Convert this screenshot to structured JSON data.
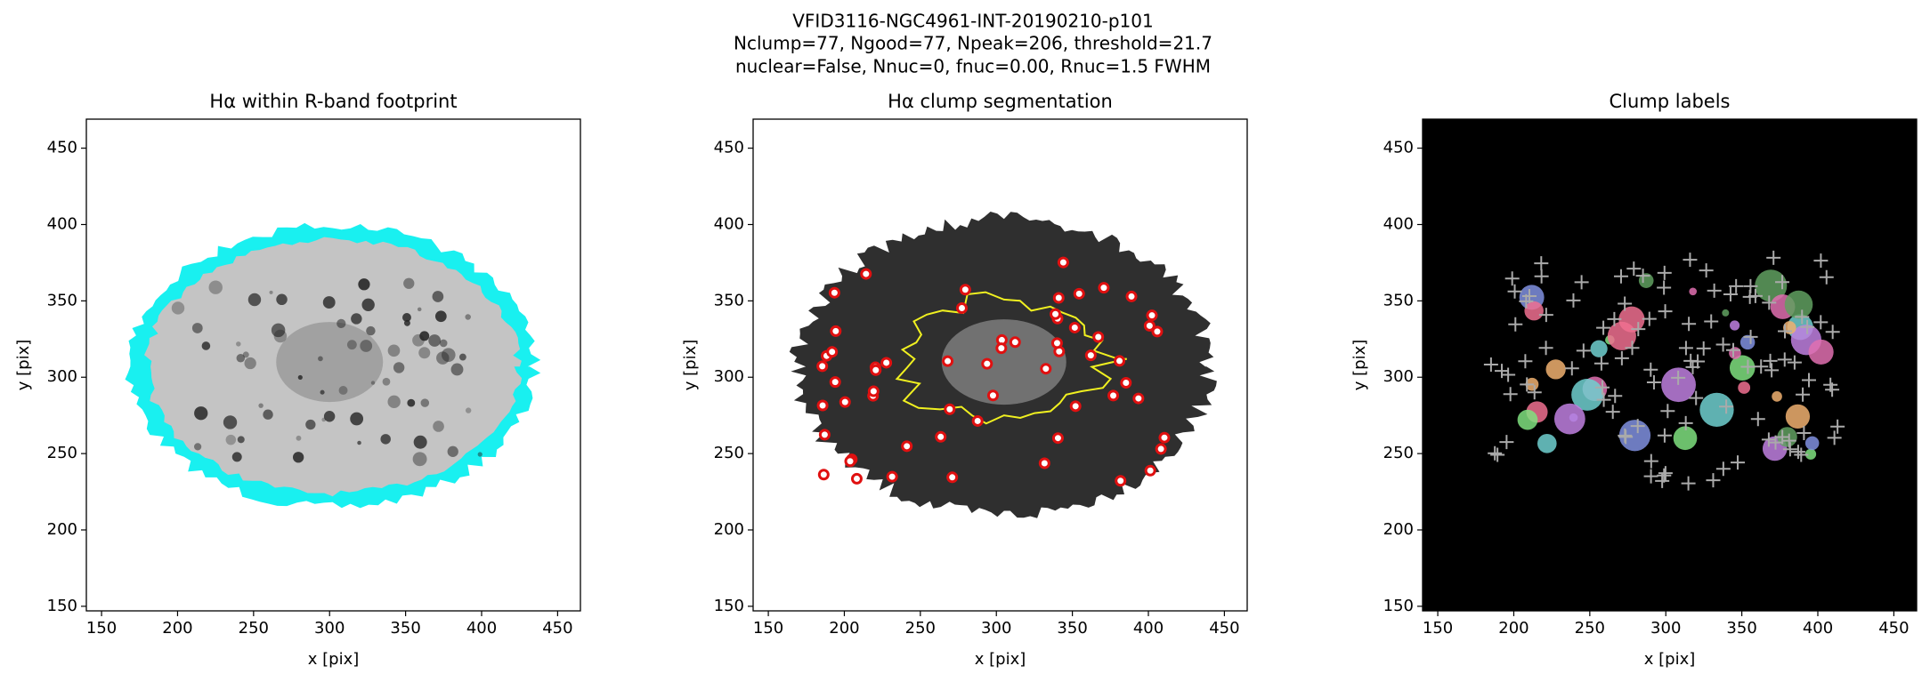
{
  "title": [
    "VFID3116-NGC4961-INT-20190210-p101",
    "Nclump=77, Ngood=77, Npeak=206, threshold=21.7",
    "nuclear=False, Nnuc=0, fnuc=0.00, Rnuc=1.5 FWHM"
  ],
  "chart_data": [
    {
      "type": "image",
      "title": "Hα within R-band footprint",
      "xlabel": "x [pix]",
      "ylabel": "y [pix]",
      "xlim": [
        140,
        465
      ],
      "ylim": [
        147,
        469
      ],
      "xticks": [
        150,
        200,
        250,
        300,
        350,
        400,
        450
      ],
      "yticks": [
        150,
        200,
        250,
        300,
        350,
        400,
        450
      ]
    },
    {
      "type": "image",
      "title": "Hα clump segmentation",
      "xlabel": "x [pix]",
      "ylabel": "y [pix]",
      "xlim": [
        140,
        465
      ],
      "ylim": [
        147,
        469
      ],
      "xticks": [
        150,
        200,
        250,
        300,
        350,
        400,
        450
      ],
      "yticks": [
        150,
        200,
        250,
        300,
        350,
        400,
        450
      ]
    },
    {
      "type": "image",
      "title": "Clump labels",
      "xlabel": "x [pix]",
      "ylabel": "y [pix]",
      "xlim": [
        140,
        465
      ],
      "ylim": [
        147,
        469
      ],
      "xticks": [
        150,
        200,
        250,
        300,
        350,
        400,
        450
      ],
      "yticks": [
        150,
        200,
        250,
        300,
        350,
        400,
        450
      ]
    }
  ]
}
